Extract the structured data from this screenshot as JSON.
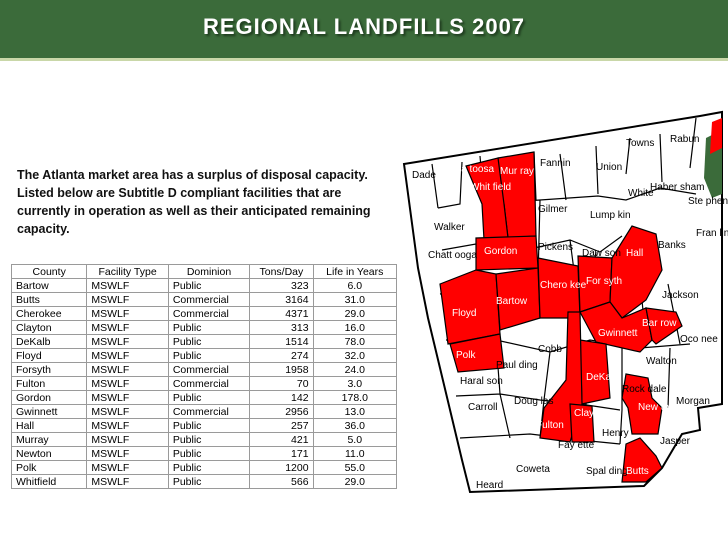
{
  "header": {
    "title": "REGIONAL LANDFILLS 2007"
  },
  "intro": "The Atlanta market area has a surplus of disposal capacity. Listed below are Subtitle D compliant facilities that are currently in operation as well as their anticipated remaining capacity.",
  "table": {
    "columns": [
      "County",
      "Facility Type",
      "Dominion",
      "Tons/Day",
      "Life in Years"
    ],
    "rows": [
      [
        "Bartow",
        "MSWLF",
        "Public",
        "323",
        "6.0"
      ],
      [
        "Butts",
        "MSWLF",
        "Commercial",
        "3164",
        "31.0"
      ],
      [
        "Cherokee",
        "MSWLF",
        "Commercial",
        "4371",
        "29.0"
      ],
      [
        "Clayton",
        "MSWLF",
        "Public",
        "313",
        "16.0"
      ],
      [
        "DeKalb",
        "MSWLF",
        "Public",
        "1514",
        "78.0"
      ],
      [
        "Floyd",
        "MSWLF",
        "Public",
        "274",
        "32.0"
      ],
      [
        "Forsyth",
        "MSWLF",
        "Commercial",
        "1958",
        "24.0"
      ],
      [
        "Fulton",
        "MSWLF",
        "Commercial",
        "70",
        "3.0"
      ],
      [
        "Gordon",
        "MSWLF",
        "Public",
        "142",
        "178.0"
      ],
      [
        "Gwinnett",
        "MSWLF",
        "Commercial",
        "2956",
        "13.0"
      ],
      [
        "Hall",
        "MSWLF",
        "Public",
        "257",
        "36.0"
      ],
      [
        "Murray",
        "MSWLF",
        "Public",
        "421",
        "5.0"
      ],
      [
        "Newton",
        "MSWLF",
        "Public",
        "171",
        "11.0"
      ],
      [
        "Polk",
        "MSWLF",
        "Public",
        "1200",
        "55.0"
      ],
      [
        "Whitfield",
        "MSWLF",
        "Public",
        "566",
        "29.0"
      ]
    ]
  },
  "map": {
    "highlight_color": "#ff0000",
    "labels": {
      "catoosa": "Ca toosa",
      "murray": "Mur ray",
      "whitfield": "Whit field",
      "fannin": "Fannin",
      "union": "Union",
      "towns": "Towns",
      "rabun": "Rabun",
      "dade": "Dade",
      "walker": "Walker",
      "gilmer": "Gilmer",
      "lumpkin": "Lump kin",
      "white": "White",
      "habersham": "Haber sham",
      "stephens": "Ste phens",
      "franklin": "Fran lin",
      "chattooga": "Chatt ooga",
      "gordon": "Gordon",
      "pickens": "Pickens",
      "dawson": "Daw son",
      "hall": "Hall",
      "banks": "Banks",
      "floyd": "Floyd",
      "bartow": "Bartow",
      "cherokee": "Chero kee",
      "forsyth": "For syth",
      "jackson": "Jackson",
      "barrow": "Bar row",
      "gwinnett": "Gwinnett",
      "oconee": "Oco nee",
      "polk": "Polk",
      "paulding": "Paul ding",
      "cobb": "Cobb",
      "walton": "Walton",
      "haralson": "Haral son",
      "douglas": "Doug las",
      "dekalb": "DeKalb",
      "rockdale": "Rock dale",
      "fulton": "Fulton",
      "clayton": "Clay ton",
      "newton": "New ton",
      "morgan": "Morgan",
      "carroll": "Carroll",
      "henry": "Henry",
      "fayette": "Fay ette",
      "jasper": "Jasper",
      "coweta": "Coweta",
      "spalding": "Spal ding",
      "butts": "Butts",
      "heard": "Heard"
    }
  }
}
